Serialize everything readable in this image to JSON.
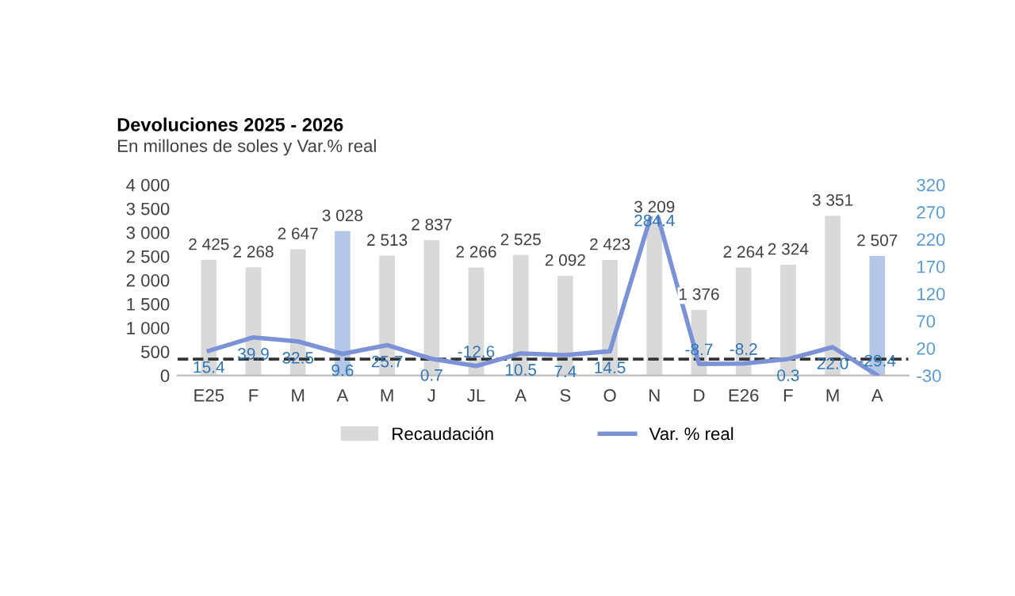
{
  "chart_data": {
    "type": "bar",
    "title": "Devoluciones 2025 - 2026",
    "subtitle": "En millones de soles y Var.% real",
    "categories": [
      "E25",
      "F",
      "M",
      "A",
      "M",
      "J",
      "JL",
      "A",
      "S",
      "O",
      "N",
      "D",
      "E26",
      "F",
      "M",
      "A"
    ],
    "series": [
      {
        "name": "Recaudación",
        "type": "bar",
        "color": "#d9d9d9",
        "colors": [
          "#d9d9d9",
          "#d9d9d9",
          "#d9d9d9",
          "#b4c7e7",
          "#d9d9d9",
          "#d9d9d9",
          "#d9d9d9",
          "#d9d9d9",
          "#d9d9d9",
          "#d9d9d9",
          "#d9d9d9",
          "#d9d9d9",
          "#d9d9d9",
          "#d9d9d9",
          "#d9d9d9",
          "#b4c7e7"
        ],
        "values": [
          2425,
          2268,
          2647,
          3028,
          2513,
          2837,
          2266,
          2525,
          2092,
          2423,
          3209,
          1376,
          2264,
          2324,
          3351,
          2507
        ],
        "value_labels": [
          "2 425",
          "2 268",
          "2 647",
          "3 028",
          "2 513",
          "2 837",
          "2 266",
          "2 525",
          "2 092",
          "2 423",
          "3 209",
          "1 376",
          "2 264",
          "2 324",
          "3 351",
          "2 507"
        ]
      },
      {
        "name": "Var. % real",
        "type": "line",
        "axis": "y2",
        "color": "#7b93d6",
        "values": [
          15.4,
          39.9,
          32.5,
          9.6,
          25.7,
          0.7,
          -12.6,
          10.5,
          7.4,
          14.5,
          284.4,
          -8.7,
          -8.2,
          0.3,
          22.0,
          -29.4
        ],
        "value_labels": [
          "15.4",
          "39.9",
          "32.5",
          "9.6",
          "25.7",
          "0.7",
          "-12.6",
          "10.5",
          "7.4",
          "14.5",
          "284.4",
          "-8.7",
          "-8.2",
          "0.3",
          "22.0",
          "-29.4"
        ]
      }
    ],
    "ylim": [
      0,
      4000
    ],
    "yticks": [
      {
        "value": 0,
        "label": "0"
      },
      {
        "value": 500,
        "label": "500"
      },
      {
        "value": 1000,
        "label": "1 000"
      },
      {
        "value": 1500,
        "label": "1 500"
      },
      {
        "value": 2000,
        "label": "2 000"
      },
      {
        "value": 2500,
        "label": "2 500"
      },
      {
        "value": 3000,
        "label": "3 000"
      },
      {
        "value": 3500,
        "label": "3 500"
      },
      {
        "value": 4000,
        "label": "4 000"
      }
    ],
    "y2lim": [
      -30,
      320
    ],
    "y2ticks": [
      -30,
      20,
      70,
      120,
      170,
      220,
      270,
      320
    ],
    "ref_lines": [
      {
        "axis": "y2",
        "value": 0,
        "color": "#333333",
        "line_style": "dashed"
      }
    ],
    "legend": "bottom",
    "grid": false
  }
}
